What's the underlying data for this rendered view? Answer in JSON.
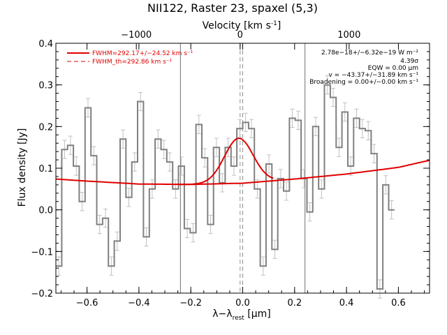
{
  "chart_data": {
    "type": "line",
    "title": "NII122, Raster 23, spaxel (5,3)",
    "xlabel": "λ−λ_rest [μm]",
    "xlabel_parts": {
      "main": "λ−λ",
      "sub": "rest",
      "unit": " [μm]"
    },
    "ylabel": "Flux density [Jy]",
    "top_xlabel": "Velocity [km s⁻¹]",
    "top_xlabel_parts": {
      "main": "Velocity [km s",
      "sup": "-1",
      "end": "]"
    },
    "xlim": [
      -0.72,
      0.72
    ],
    "ylim": [
      -0.2,
      0.4
    ],
    "xticks": [
      -0.6,
      -0.4,
      -0.2,
      0.0,
      0.2,
      0.4,
      0.6
    ],
    "xtick_labels": [
      "−0.6",
      "−0.4",
      "−0.2",
      "0.0",
      "0.2",
      "0.4",
      "0.6"
    ],
    "yticks": [
      -0.2,
      -0.1,
      0.0,
      0.1,
      0.2,
      0.3,
      0.4
    ],
    "ytick_labels": [
      "−0.2",
      "−0.1",
      "0.0",
      "0.1",
      "0.2",
      "0.3",
      "0.4"
    ],
    "top_ticks": [
      {
        "x": -0.41,
        "label": "−1000"
      },
      {
        "x": -0.01,
        "label": "0"
      },
      {
        "x": 0.41,
        "label": "1000"
      }
    ],
    "grid": false,
    "legend": [
      {
        "label": "FWHM=292.17+/−24.52 km s⁻¹",
        "color": "#e00000",
        "style": "solid"
      },
      {
        "label": "FWHM_th=292.86 km s⁻¹",
        "color": "#e00000",
        "style": "dashed"
      }
    ],
    "annotations": [
      "2.78e−18+/−6.32e−19 W m⁻²",
      "4.39σ",
      "EQW = 0.00 μm",
      "v = −43.37+/−31.89 km s⁻¹",
      "Broadening = 0.00+/−0.00 km s⁻¹"
    ],
    "vlines_solid": [
      -0.24,
      0.24
    ],
    "vline_dashed": -0.01,
    "vline_dashed2": 0.0,
    "spectrum_step": {
      "x0": -0.72,
      "bin_width": 0.0225,
      "y": [
        -0.135,
        0.145,
        0.155,
        0.105,
        0.02,
        0.245,
        0.13,
        -0.035,
        -0.02,
        -0.135,
        -0.075,
        0.17,
        0.03,
        0.115,
        0.26,
        -0.065,
        0.05,
        0.17,
        0.145,
        0.115,
        0.05,
        0.105,
        -0.045,
        -0.055,
        0.205,
        0.125,
        -0.035,
        0.15,
        0.065,
        0.15,
        0.105,
        0.195,
        0.21,
        0.195,
        0.05,
        -0.135,
        0.11,
        -0.095,
        0.075,
        0.045,
        0.22,
        0.215,
        0.075,
        -0.005,
        0.2,
        0.05,
        0.3,
        0.27,
        0.15,
        0.235,
        0.105,
        0.22,
        0.195,
        0.19,
        0.135,
        -0.19,
        0.06,
        0.0
      ],
      "err": 0.022,
      "color": "#808080"
    },
    "baseline": {
      "description": "quadratic continuum",
      "x": [
        -0.72,
        -0.6,
        -0.4,
        -0.2,
        0.0,
        0.2,
        0.4,
        0.6,
        0.72
      ],
      "y": [
        0.074,
        0.069,
        0.062,
        0.061,
        0.064,
        0.074,
        0.086,
        0.102,
        0.119
      ],
      "color": "#e00000"
    },
    "gaussian": {
      "center": -0.015,
      "fwhm": 0.13,
      "peak_extra": 0.108,
      "range": [
        -0.25,
        0.12
      ],
      "color": "#e00000"
    }
  }
}
